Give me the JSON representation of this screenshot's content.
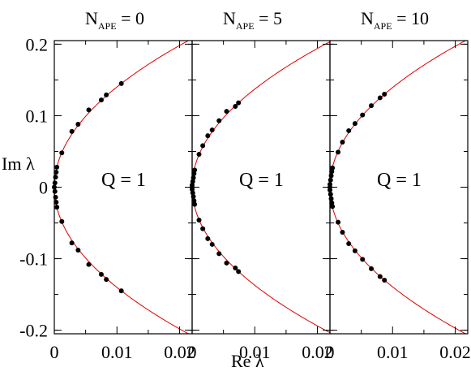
{
  "chart_data": {
    "type": "scatter",
    "xlabel": "Re λ",
    "ylabel": "Im λ",
    "xlim": [
      0,
      0.022
    ],
    "ylim": [
      -0.205,
      0.205
    ],
    "x_ticks": [
      {
        "value": 0,
        "label": "0"
      },
      {
        "value": 0.01,
        "label": "0.01"
      },
      {
        "value": 0.02,
        "label": "0.02"
      }
    ],
    "y_ticks": [
      {
        "value": 0.2,
        "label": "0.2"
      },
      {
        "value": 0.1,
        "label": "0.1"
      },
      {
        "value": 0,
        "label": "0"
      },
      {
        "value": -0.1,
        "label": "-0.1"
      },
      {
        "value": -0.2,
        "label": "-0.2"
      }
    ],
    "curve": {
      "color": "#e00000",
      "type": "parabola"
    },
    "panels": [
      {
        "title_main": "N",
        "title_sub": "APE",
        "title_value": " = 0",
        "annotation": "Q = 1",
        "points": [
          [
            0.0,
            0.0
          ],
          [
            0.0001,
            0.006
          ],
          [
            0.0001,
            -0.006
          ],
          [
            0.0002,
            0.014
          ],
          [
            0.0002,
            -0.014
          ],
          [
            0.0003,
            0.021
          ],
          [
            0.0003,
            -0.021
          ],
          [
            0.0004,
            0.028
          ],
          [
            0.0004,
            -0.028
          ],
          [
            0.0012,
            0.048
          ],
          [
            0.0012,
            -0.048
          ],
          [
            0.0028,
            0.078
          ],
          [
            0.0028,
            -0.078
          ],
          [
            0.0038,
            0.088
          ],
          [
            0.0038,
            -0.088
          ],
          [
            0.0055,
            0.108
          ],
          [
            0.0055,
            -0.108
          ],
          [
            0.0075,
            0.122
          ],
          [
            0.0075,
            -0.122
          ],
          [
            0.0083,
            0.129
          ],
          [
            0.0083,
            -0.129
          ],
          [
            0.0107,
            0.145
          ],
          [
            0.0107,
            -0.145
          ]
        ]
      },
      {
        "title_main": "N",
        "title_sub": "APE",
        "title_value": " = 5",
        "annotation": "Q = 1",
        "points": [
          [
            0.0,
            0.0
          ],
          [
            0.0,
            0.003
          ],
          [
            0.0,
            -0.003
          ],
          [
            0.0001,
            0.008
          ],
          [
            0.0001,
            -0.008
          ],
          [
            0.0002,
            0.013
          ],
          [
            0.0002,
            -0.013
          ],
          [
            0.0003,
            0.019
          ],
          [
            0.0003,
            -0.019
          ],
          [
            0.0004,
            0.024
          ],
          [
            0.0004,
            -0.024
          ],
          [
            0.0011,
            0.046
          ],
          [
            0.0011,
            -0.046
          ],
          [
            0.0017,
            0.058
          ],
          [
            0.0017,
            -0.058
          ],
          [
            0.0025,
            0.072
          ],
          [
            0.0025,
            -0.072
          ],
          [
            0.0032,
            0.08
          ],
          [
            0.0032,
            -0.08
          ],
          [
            0.0043,
            0.093
          ],
          [
            0.0043,
            -0.093
          ],
          [
            0.0055,
            0.106
          ],
          [
            0.0055,
            -0.106
          ],
          [
            0.0069,
            0.113
          ],
          [
            0.0069,
            -0.113
          ],
          [
            0.0074,
            0.118
          ],
          [
            0.0074,
            -0.118
          ]
        ]
      },
      {
        "title_main": "N",
        "title_sub": "APE",
        "title_value": " = 10",
        "annotation": "Q = 1",
        "points": [
          [
            0.0,
            0.0
          ],
          [
            0.0,
            0.004
          ],
          [
            0.0,
            -0.004
          ],
          [
            0.0001,
            0.01
          ],
          [
            0.0001,
            -0.01
          ],
          [
            0.0002,
            0.016
          ],
          [
            0.0002,
            -0.016
          ],
          [
            0.0003,
            0.022
          ],
          [
            0.0003,
            -0.022
          ],
          [
            0.0004,
            0.027
          ],
          [
            0.0004,
            -0.027
          ],
          [
            0.0013,
            0.049
          ],
          [
            0.0013,
            -0.049
          ],
          [
            0.002,
            0.063
          ],
          [
            0.002,
            -0.063
          ],
          [
            0.003,
            0.079
          ],
          [
            0.003,
            -0.079
          ],
          [
            0.004,
            0.089
          ],
          [
            0.004,
            -0.089
          ],
          [
            0.0052,
            0.101
          ],
          [
            0.0052,
            -0.101
          ],
          [
            0.0066,
            0.114
          ],
          [
            0.0066,
            -0.114
          ],
          [
            0.008,
            0.125
          ],
          [
            0.008,
            -0.125
          ],
          [
            0.0087,
            0.13
          ],
          [
            0.0087,
            -0.13
          ]
        ]
      }
    ]
  }
}
